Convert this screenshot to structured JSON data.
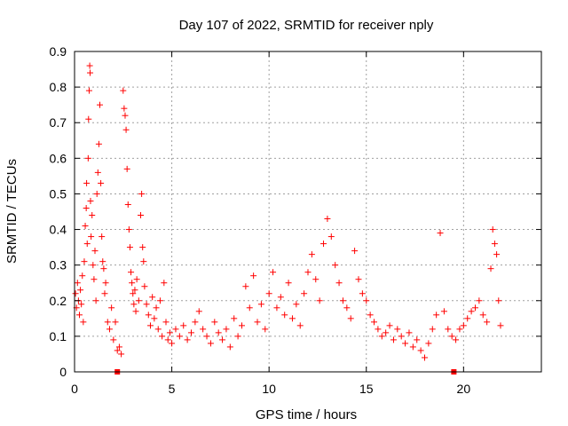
{
  "chart_data": {
    "type": "scatter",
    "title": "Day 107 of 2022, SRMTID for receiver nply",
    "xlabel": "GPS time / hours",
    "ylabel": "SRMTID / TECUs",
    "xlim": [
      0,
      24
    ],
    "ylim": [
      0,
      0.9
    ],
    "xticks": [
      0,
      5,
      10,
      15,
      20
    ],
    "yticks": [
      0,
      0.1,
      0.2,
      0.3,
      0.4,
      0.5,
      0.6,
      0.7,
      0.8,
      0.9
    ],
    "ytick_labels": [
      "0",
      "0.1",
      "0.2",
      "0.3",
      "0.4",
      "0.5",
      "0.6",
      "0.7",
      "0.8",
      "0.9"
    ],
    "grid": true,
    "marker": "+",
    "color": "#ff0000",
    "series": [
      {
        "name": "SRMTID",
        "points": [
          [
            0.05,
            0.22
          ],
          [
            0.1,
            0.18
          ],
          [
            0.15,
            0.25
          ],
          [
            0.2,
            0.2
          ],
          [
            0.25,
            0.16
          ],
          [
            0.3,
            0.23
          ],
          [
            0.35,
            0.19
          ],
          [
            0.4,
            0.27
          ],
          [
            0.45,
            0.14
          ],
          [
            0.5,
            0.31
          ],
          [
            0.55,
            0.41
          ],
          [
            0.6,
            0.46
          ],
          [
            0.62,
            0.53
          ],
          [
            0.65,
            0.36
          ],
          [
            0.7,
            0.6
          ],
          [
            0.72,
            0.71
          ],
          [
            0.75,
            0.79
          ],
          [
            0.78,
            0.86
          ],
          [
            0.8,
            0.84
          ],
          [
            0.82,
            0.48
          ],
          [
            0.85,
            0.38
          ],
          [
            0.9,
            0.44
          ],
          [
            0.95,
            0.3
          ],
          [
            1.0,
            0.26
          ],
          [
            1.05,
            0.34
          ],
          [
            1.1,
            0.2
          ],
          [
            1.15,
            0.5
          ],
          [
            1.2,
            0.56
          ],
          [
            1.25,
            0.64
          ],
          [
            1.3,
            0.75
          ],
          [
            1.35,
            0.53
          ],
          [
            1.4,
            0.38
          ],
          [
            1.45,
            0.31
          ],
          [
            1.5,
            0.29
          ],
          [
            1.55,
            0.22
          ],
          [
            1.6,
            0.25
          ],
          [
            1.7,
            0.14
          ],
          [
            1.8,
            0.12
          ],
          [
            1.9,
            0.18
          ],
          [
            2.0,
            0.09
          ],
          [
            2.1,
            0.14
          ],
          [
            2.2,
            0.06
          ],
          [
            2.3,
            0.07
          ],
          [
            2.4,
            0.05
          ],
          [
            2.5,
            0.79
          ],
          [
            2.55,
            0.74
          ],
          [
            2.6,
            0.72
          ],
          [
            2.65,
            0.68
          ],
          [
            2.7,
            0.57
          ],
          [
            2.75,
            0.47
          ],
          [
            2.8,
            0.4
          ],
          [
            2.85,
            0.35
          ],
          [
            2.9,
            0.28
          ],
          [
            2.95,
            0.25
          ],
          [
            3.0,
            0.22
          ],
          [
            3.05,
            0.19
          ],
          [
            3.1,
            0.23
          ],
          [
            3.15,
            0.17
          ],
          [
            3.2,
            0.26
          ],
          [
            3.3,
            0.2
          ],
          [
            3.4,
            0.44
          ],
          [
            3.45,
            0.5
          ],
          [
            3.5,
            0.35
          ],
          [
            3.55,
            0.31
          ],
          [
            3.6,
            0.24
          ],
          [
            3.7,
            0.19
          ],
          [
            3.8,
            0.16
          ],
          [
            3.9,
            0.13
          ],
          [
            4.0,
            0.21
          ],
          [
            4.1,
            0.15
          ],
          [
            4.2,
            0.18
          ],
          [
            4.3,
            0.12
          ],
          [
            4.4,
            0.2
          ],
          [
            4.5,
            0.1
          ],
          [
            4.6,
            0.25
          ],
          [
            4.7,
            0.14
          ],
          [
            4.8,
            0.09
          ],
          [
            4.9,
            0.11
          ],
          [
            5.0,
            0.08
          ],
          [
            5.2,
            0.12
          ],
          [
            5.4,
            0.1
          ],
          [
            5.6,
            0.13
          ],
          [
            5.8,
            0.09
          ],
          [
            6.0,
            0.11
          ],
          [
            6.2,
            0.14
          ],
          [
            6.4,
            0.17
          ],
          [
            6.6,
            0.12
          ],
          [
            6.8,
            0.1
          ],
          [
            7.0,
            0.08
          ],
          [
            7.2,
            0.14
          ],
          [
            7.4,
            0.11
          ],
          [
            7.6,
            0.09
          ],
          [
            7.8,
            0.12
          ],
          [
            8.0,
            0.07
          ],
          [
            8.2,
            0.15
          ],
          [
            8.4,
            0.1
          ],
          [
            8.6,
            0.13
          ],
          [
            8.8,
            0.24
          ],
          [
            9.0,
            0.18
          ],
          [
            9.2,
            0.27
          ],
          [
            9.4,
            0.14
          ],
          [
            9.6,
            0.19
          ],
          [
            9.8,
            0.12
          ],
          [
            10.0,
            0.22
          ],
          [
            10.2,
            0.28
          ],
          [
            10.4,
            0.18
          ],
          [
            10.6,
            0.21
          ],
          [
            10.8,
            0.16
          ],
          [
            11.0,
            0.25
          ],
          [
            11.2,
            0.15
          ],
          [
            11.4,
            0.19
          ],
          [
            11.6,
            0.13
          ],
          [
            11.8,
            0.22
          ],
          [
            12.0,
            0.28
          ],
          [
            12.2,
            0.33
          ],
          [
            12.4,
            0.26
          ],
          [
            12.6,
            0.2
          ],
          [
            12.8,
            0.36
          ],
          [
            13.0,
            0.43
          ],
          [
            13.2,
            0.38
          ],
          [
            13.4,
            0.3
          ],
          [
            13.6,
            0.25
          ],
          [
            13.8,
            0.2
          ],
          [
            14.0,
            0.18
          ],
          [
            14.2,
            0.15
          ],
          [
            14.4,
            0.34
          ],
          [
            14.6,
            0.26
          ],
          [
            14.8,
            0.22
          ],
          [
            15.0,
            0.2
          ],
          [
            15.2,
            0.16
          ],
          [
            15.4,
            0.14
          ],
          [
            15.6,
            0.12
          ],
          [
            15.8,
            0.1
          ],
          [
            16.0,
            0.11
          ],
          [
            16.2,
            0.13
          ],
          [
            16.4,
            0.09
          ],
          [
            16.6,
            0.12
          ],
          [
            16.8,
            0.1
          ],
          [
            17.0,
            0.08
          ],
          [
            17.2,
            0.11
          ],
          [
            17.4,
            0.07
          ],
          [
            17.6,
            0.09
          ],
          [
            17.8,
            0.06
          ],
          [
            18.0,
            0.04
          ],
          [
            18.2,
            0.08
          ],
          [
            18.4,
            0.12
          ],
          [
            18.6,
            0.16
          ],
          [
            18.8,
            0.39
          ],
          [
            19.0,
            0.17
          ],
          [
            19.2,
            0.12
          ],
          [
            19.4,
            0.1
          ],
          [
            19.6,
            0.09
          ],
          [
            19.8,
            0.12
          ],
          [
            20.0,
            0.13
          ],
          [
            20.2,
            0.15
          ],
          [
            20.4,
            0.17
          ],
          [
            20.6,
            0.18
          ],
          [
            20.8,
            0.2
          ],
          [
            21.0,
            0.16
          ],
          [
            21.2,
            0.14
          ],
          [
            21.4,
            0.29
          ],
          [
            21.5,
            0.4
          ],
          [
            21.6,
            0.36
          ],
          [
            21.7,
            0.33
          ],
          [
            21.8,
            0.2
          ],
          [
            21.9,
            0.13
          ]
        ]
      },
      {
        "name": "markers-on-axis",
        "marker": "square",
        "points": [
          [
            2.2,
            0.0
          ],
          [
            19.5,
            0.0
          ]
        ]
      }
    ]
  }
}
